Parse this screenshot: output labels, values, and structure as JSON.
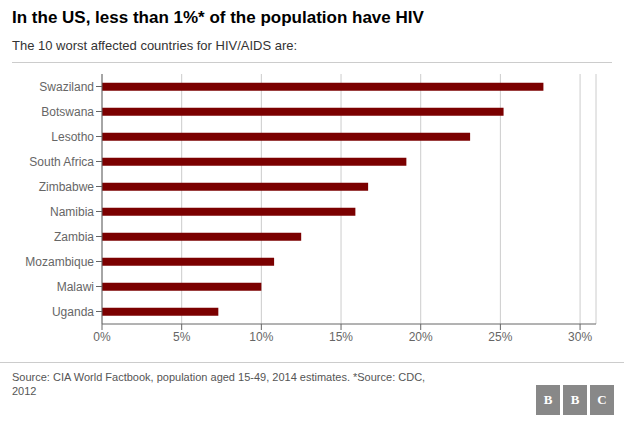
{
  "chart_data": {
    "type": "bar",
    "orientation": "horizontal",
    "title": "In the US, less than 1%* of the population have HIV",
    "subtitle": "The 10 worst affected countries for HIV/AIDS are:",
    "categories": [
      "Uganda",
      "Malawi",
      "Mozambique",
      "Zambia",
      "Namibia",
      "Zimbabwe",
      "South Africa",
      "Lesotho",
      "Botswana",
      "Swaziland"
    ],
    "values": [
      7.3,
      10.0,
      10.8,
      12.5,
      15.9,
      16.7,
      19.1,
      23.1,
      25.2,
      27.7
    ],
    "color": "#7B0000",
    "xlim": [
      0,
      31
    ],
    "xticks": [
      {
        "value": 0,
        "label": "0%"
      },
      {
        "value": 5,
        "label": "5%"
      },
      {
        "value": 10,
        "label": "10%"
      },
      {
        "value": 15,
        "label": "15%"
      },
      {
        "value": 20,
        "label": "20%"
      },
      {
        "value": 25,
        "label": "25%"
      },
      {
        "value": 30,
        "label": "30%"
      }
    ],
    "grid": true,
    "footer": "Source: CIA World Factbook, population aged 15-49, 2014 estimates. *Source: CDC,\n2012",
    "logo": [
      "B",
      "B",
      "C"
    ],
    "logo_color": "#888888"
  }
}
